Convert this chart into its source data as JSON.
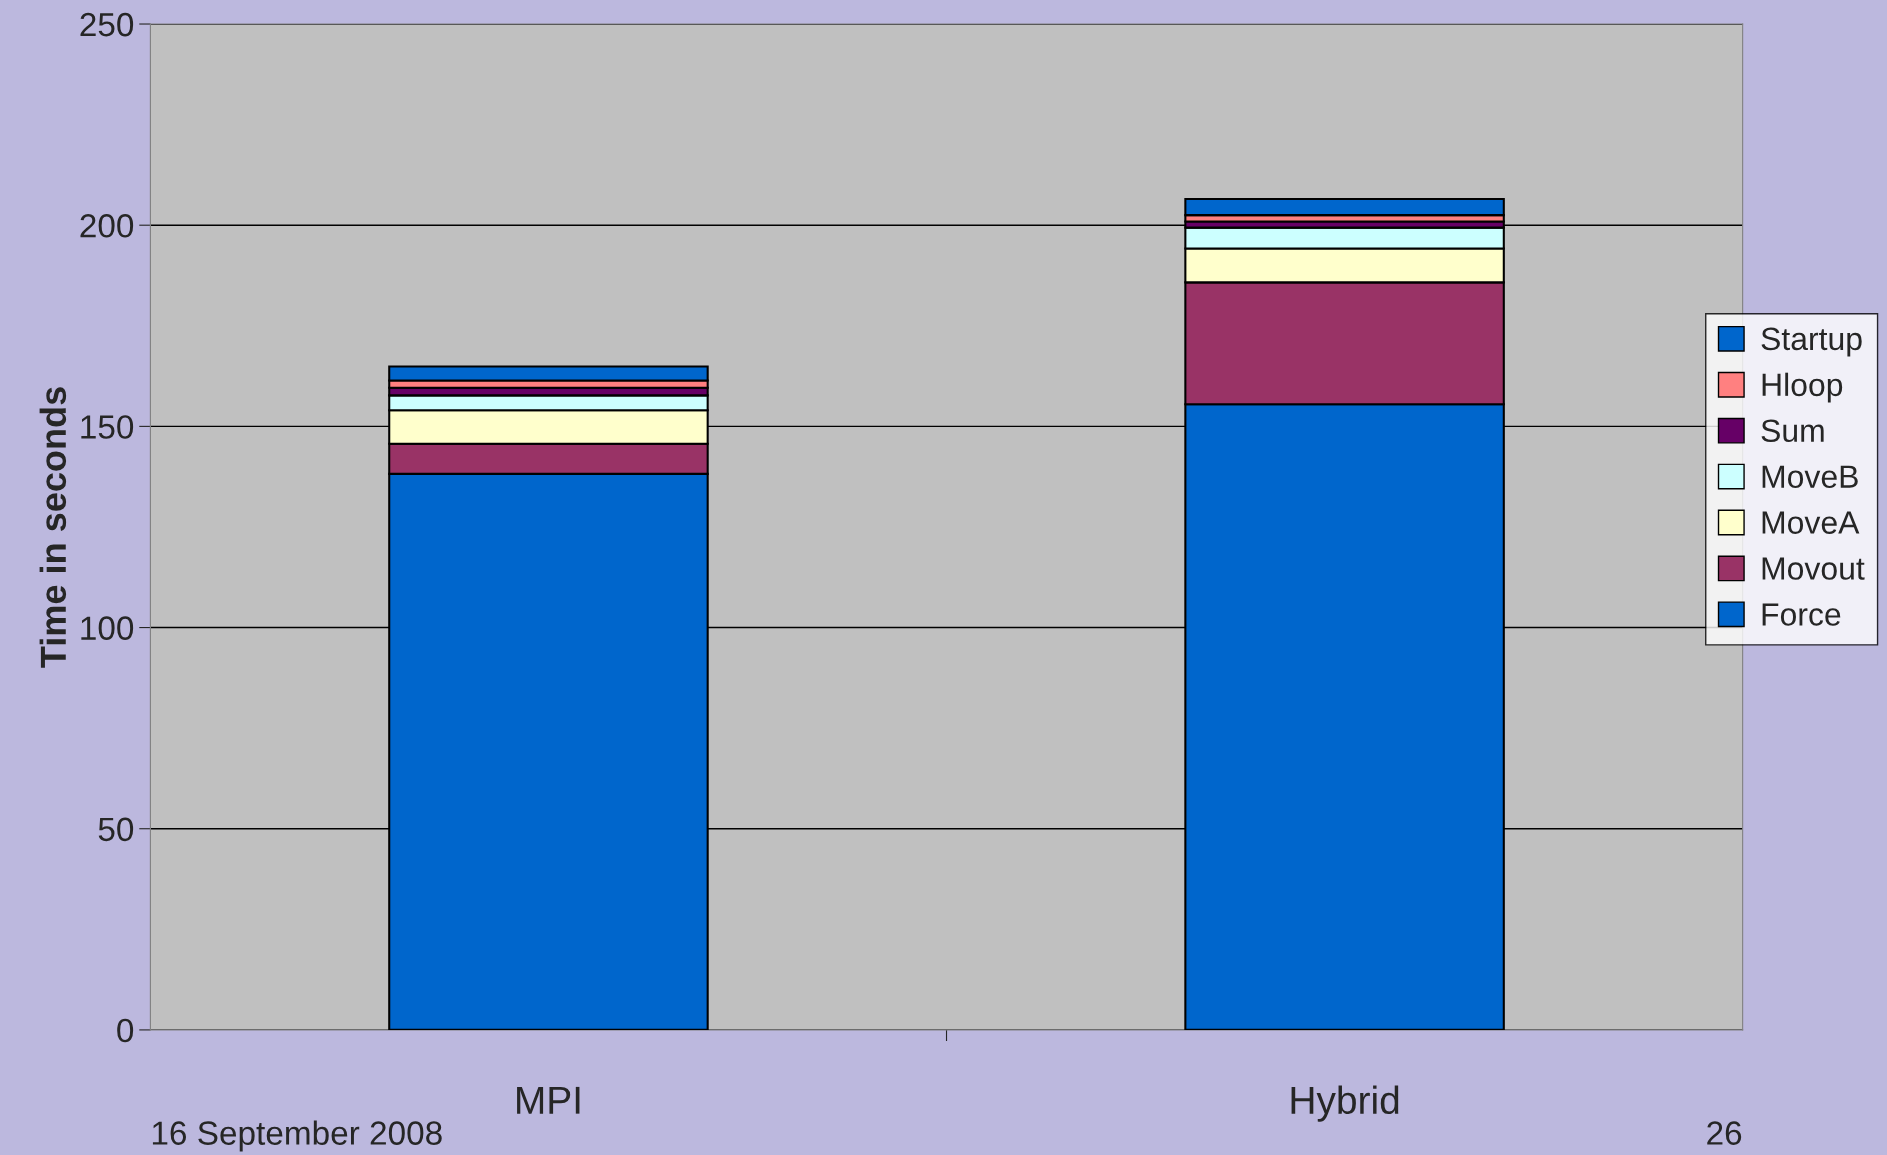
{
  "chart_data": {
    "type": "bar",
    "stacked": true,
    "ylabel": "Time in seconds",
    "categories": [
      "MPI",
      "Hybrid"
    ],
    "series": [
      {
        "name": "Force",
        "color": "#0066cc",
        "values": [
          138.2,
          155.5
        ]
      },
      {
        "name": "Movout",
        "color": "#993366",
        "values": [
          7.5,
          30.3
        ]
      },
      {
        "name": "MoveA",
        "color": "#ffffcc",
        "values": [
          8.3,
          8.4
        ]
      },
      {
        "name": "MoveB",
        "color": "#ccffff",
        "values": [
          3.7,
          5.2
        ]
      },
      {
        "name": "Sum",
        "color": "#660066",
        "values": [
          1.9,
          1.5
        ]
      },
      {
        "name": "Hloop",
        "color": "#ff8080",
        "values": [
          1.8,
          1.6
        ]
      },
      {
        "name": "Startup",
        "color": "#0066cc",
        "values": [
          3.5,
          4.0
        ]
      }
    ],
    "ylim": [
      0,
      250
    ],
    "yticks": [
      0,
      50,
      100,
      150,
      200,
      250
    ],
    "grid": "y",
    "legend": "right",
    "annotations": [
      "16 September 2008",
      "26"
    ]
  }
}
